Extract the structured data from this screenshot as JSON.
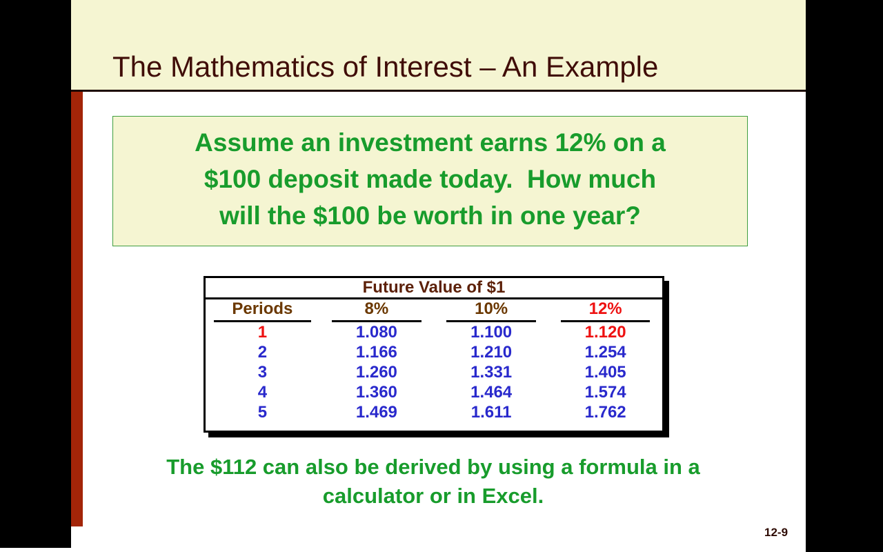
{
  "title": {
    "text": "The Mathematics of Interest – An Example"
  },
  "question_box": {
    "lines": [
      "Assume an investment earns 12% on a",
      "$100 deposit made today.  How much",
      "will the $100 be worth in one year?"
    ]
  },
  "table": {
    "title": "Future Value of $1",
    "columns": [
      "Periods",
      "8%",
      "10%",
      "12%"
    ],
    "rows": [
      {
        "period": "1",
        "v8": "1.080",
        "v10": "1.100",
        "v12": "1.120"
      },
      {
        "period": "2",
        "v8": "1.166",
        "v10": "1.210",
        "v12": "1.254"
      },
      {
        "period": "3",
        "v8": "1.260",
        "v10": "1.331",
        "v12": "1.405"
      },
      {
        "period": "4",
        "v8": "1.360",
        "v10": "1.464",
        "v12": "1.574"
      },
      {
        "period": "5",
        "v8": "1.469",
        "v10": "1.611",
        "v12": "1.762"
      }
    ],
    "highlight_note": "period 1 row label and 12% column value shown in red"
  },
  "footer_note": {
    "lines": [
      "The $112 can also be derived by using a formula in a",
      "calculator or in Excel."
    ]
  },
  "page": {
    "number_label": "12-9"
  },
  "colors": {
    "letterbox": "#000000",
    "band_cream": "#f5f5d2",
    "title_maroon": "#400d08",
    "accent_bar_red": "#a32508",
    "green_text": "#189c2c",
    "box_border_green": "#3f9e3f",
    "table_title_brown": "#5c2008",
    "table_header_brown": "#6b3800",
    "value_blue": "#2929cc",
    "highlight_red": "#ee1111"
  }
}
